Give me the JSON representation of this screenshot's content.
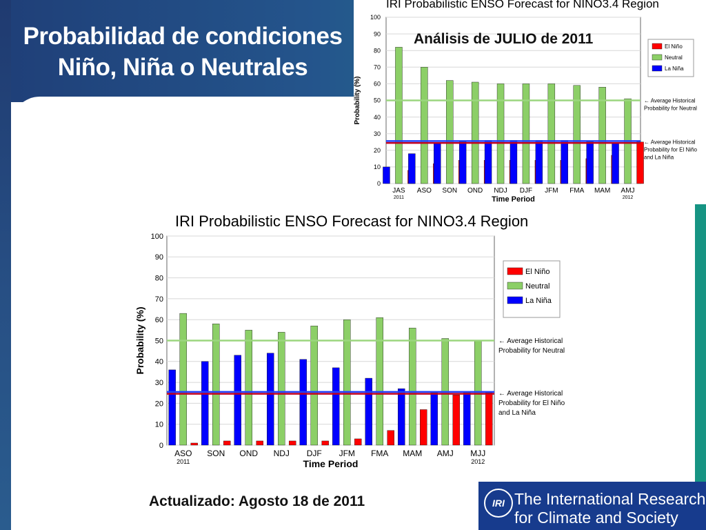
{
  "slide": {
    "title_lines": [
      "Probabilidad de condiciones",
      "Niño, Niña o Neutrales"
    ],
    "analysis_label": "Análisis de JULIO de 2011",
    "updated_label": "Actualizado: Agosto 18 de 2011"
  },
  "logo": {
    "mark": "IRI",
    "line1": "The International Research Institute",
    "line2": "for Climate and Society"
  },
  "colors": {
    "el_nino": "#ff0000",
    "neutral": "#8ccf67",
    "la_nina": "#0000ff",
    "neutral_line": "#9bd67f",
    "climatology_line": "#c00020",
    "climatology_line2": "#2040ff"
  },
  "chart_data": [
    {
      "type": "bar",
      "title": "IRI Probabilistic ENSO Forecast for NINO3.4 Region",
      "xlabel": "Time Period",
      "ylabel": "Probability (%)",
      "categories": [
        "JAS",
        "ASO",
        "SON",
        "OND",
        "NDJ",
        "DJF",
        "JFM",
        "FMA",
        "MAM",
        "AMJ"
      ],
      "year_markers": [
        {
          "index": 0,
          "label": "2011"
        },
        {
          "index": 9,
          "label": "2012"
        }
      ],
      "ylim": [
        0,
        100
      ],
      "yticks": [
        0,
        10,
        20,
        30,
        40,
        50,
        60,
        70,
        80,
        90,
        100
      ],
      "grid": true,
      "legend_position": "right",
      "series": [
        {
          "name": "El Niño",
          "values": [
            8,
            12,
            14,
            14,
            14,
            14,
            14,
            15,
            17,
            25
          ]
        },
        {
          "name": "Neutral",
          "values": [
            82,
            70,
            62,
            61,
            60,
            60,
            60,
            59,
            58,
            51
          ]
        },
        {
          "name": "La Niña",
          "values": [
            10,
            18,
            24,
            25,
            26,
            26,
            26,
            26,
            25,
            24
          ]
        }
      ],
      "reference_lines": [
        {
          "value": 50,
          "label_lines": [
            "← Average Historical",
            "Probability for Neutral"
          ]
        },
        {
          "value": 25,
          "label_lines": [
            "← Average Historical",
            "Probability for El Niño",
            "and La Niña"
          ]
        }
      ]
    },
    {
      "type": "bar",
      "title": "IRI Probabilistic ENSO Forecast for NINO3.4 Region",
      "xlabel": "Time Period",
      "ylabel": "Probability (%)",
      "categories": [
        "ASO",
        "SON",
        "OND",
        "NDJ",
        "DJF",
        "JFM",
        "FMA",
        "MAM",
        "AMJ",
        "MJJ"
      ],
      "year_markers": [
        {
          "index": 0,
          "label": "2011"
        },
        {
          "index": 9,
          "label": "2012"
        }
      ],
      "ylim": [
        0,
        100
      ],
      "yticks": [
        0,
        10,
        20,
        30,
        40,
        50,
        60,
        70,
        80,
        90,
        100
      ],
      "grid": true,
      "legend_position": "right",
      "series": [
        {
          "name": "El Niño",
          "values": [
            1,
            2,
            2,
            2,
            2,
            3,
            7,
            17,
            24,
            25
          ]
        },
        {
          "name": "Neutral",
          "values": [
            63,
            58,
            55,
            54,
            57,
            60,
            61,
            56,
            51,
            50
          ]
        },
        {
          "name": "La Niña",
          "values": [
            36,
            40,
            43,
            44,
            41,
            37,
            32,
            27,
            25,
            25
          ]
        }
      ],
      "reference_lines": [
        {
          "value": 50,
          "label_lines": [
            "← Average Historical",
            "Probability for Neutral"
          ]
        },
        {
          "value": 25,
          "label_lines": [
            "← Average Historical",
            "Probability for El Niño",
            "and La Niña"
          ]
        }
      ]
    }
  ]
}
